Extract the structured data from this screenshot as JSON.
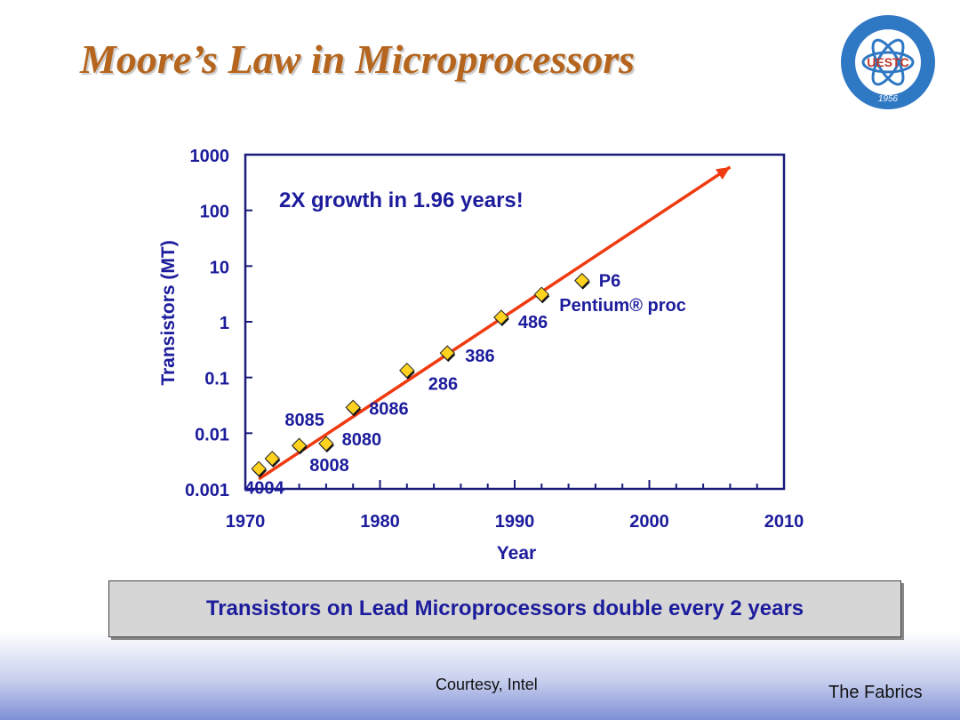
{
  "slide": {
    "title": "Moore’s Law in Microprocessors",
    "callout": "Transistors on Lead Microprocessors double every 2 years",
    "courtesy": "Courtesy, Intel",
    "footer_right": "The Fabrics",
    "logo_text": "UESTC",
    "logo_year": "1956"
  },
  "colors": {
    "title": "#b5651d",
    "axis": "#1a1a7a",
    "label": "#1c1c9c",
    "trend": "#f03a10",
    "marker": "#ffd21f"
  },
  "chart_data": {
    "type": "scatter",
    "xlabel": "Year",
    "ylabel": "Transistors (MT)",
    "annotation": "2X growth in 1.96 years!",
    "scale_y": "log",
    "xlim": [
      1970,
      2010
    ],
    "ylim": [
      0.001,
      1000
    ],
    "x_ticks": [
      "1970",
      "1980",
      "1990",
      "2000",
      "2010"
    ],
    "y_ticks": [
      "0.001",
      "0.01",
      "0.1",
      "1",
      "10",
      "100",
      "1000"
    ],
    "points": [
      {
        "label": "4004",
        "x": 1971,
        "y": 0.0023
      },
      {
        "label": "8008",
        "x": 1972,
        "y": 0.0035
      },
      {
        "label": "8080",
        "x": 1974,
        "y": 0.006
      },
      {
        "label": "8085",
        "x": 1976,
        "y": 0.0065
      },
      {
        "label": "8086",
        "x": 1978,
        "y": 0.029
      },
      {
        "label": "286",
        "x": 1982,
        "y": 0.134
      },
      {
        "label": "386",
        "x": 1985,
        "y": 0.275
      },
      {
        "label": "486",
        "x": 1989,
        "y": 1.2
      },
      {
        "label": "Pentium® proc",
        "x": 1992,
        "y": 3.1
      },
      {
        "label": "P6",
        "x": 1995,
        "y": 5.5
      }
    ],
    "trend": {
      "x": [
        1971,
        2006
      ],
      "y": [
        0.0015,
        600
      ]
    }
  }
}
